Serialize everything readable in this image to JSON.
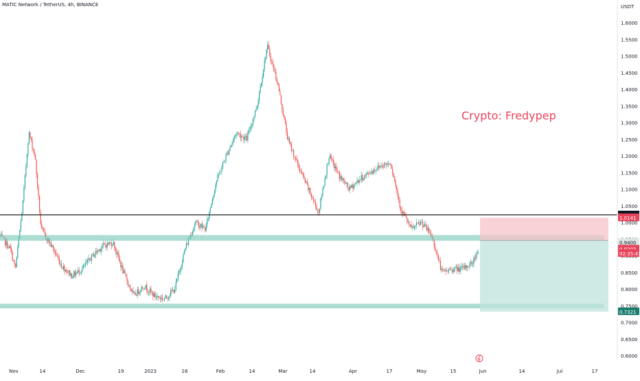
{
  "header": {
    "symbol": "MATIC Network / TetherUS, 4h, BINANCE"
  },
  "watermark": {
    "text": "Crypto: Fredypep"
  },
  "colors": {
    "up": "#26a69a",
    "down": "#ef5350",
    "zone": "#74c6b6",
    "short_risk": "#f7c3c8",
    "short_reward": "#bfe3dc",
    "resistance_line": "#000000",
    "label_dark": "#131722",
    "label_green": "#1b7d6e",
    "label_red": "#e8435a",
    "label_pale": "#dfe8e6"
  },
  "chart_data": {
    "type": "candlestick",
    "title": "MATIC Network / TetherUS, 4h, BINANCE",
    "currency": "USDT",
    "ylim": [
      0.59,
      1.62
    ],
    "y_ticks": [
      "1.6000",
      "1.5500",
      "1.5000",
      "1.4500",
      "1.4000",
      "1.3500",
      "1.3000",
      "1.2500",
      "1.2000",
      "1.1500",
      "1.1000",
      "1.0500",
      "1.0000",
      "0.9500",
      "0.9000",
      "0.8500",
      "0.8000",
      "0.7500",
      "0.7000",
      "0.6500",
      "0.6000"
    ],
    "x_ticks": [
      "Nov",
      "14",
      "Dec",
      "19",
      "2023",
      "16",
      "Feb",
      "14",
      "Mar",
      "14",
      "Apr",
      "17",
      "May",
      "15",
      "Jun",
      "14",
      "Jul",
      "17"
    ],
    "price_path": [
      {
        "t": 0.0,
        "p": 0.96
      },
      {
        "t": 1.0,
        "p": 0.92
      },
      {
        "t": 1.5,
        "p": 0.86
      },
      {
        "t": 2.2,
        "p": 1.05
      },
      {
        "t": 2.8,
        "p": 1.27
      },
      {
        "t": 3.4,
        "p": 1.2
      },
      {
        "t": 4.0,
        "p": 0.98
      },
      {
        "t": 5.0,
        "p": 0.93
      },
      {
        "t": 6.0,
        "p": 0.87
      },
      {
        "t": 7.0,
        "p": 0.84
      },
      {
        "t": 8.0,
        "p": 0.86
      },
      {
        "t": 9.0,
        "p": 0.9
      },
      {
        "t": 10.0,
        "p": 0.93
      },
      {
        "t": 11.0,
        "p": 0.94
      },
      {
        "t": 12.0,
        "p": 0.85
      },
      {
        "t": 13.0,
        "p": 0.78
      },
      {
        "t": 14.0,
        "p": 0.81
      },
      {
        "t": 15.0,
        "p": 0.78
      },
      {
        "t": 16.0,
        "p": 0.77
      },
      {
        "t": 17.0,
        "p": 0.8
      },
      {
        "t": 18.0,
        "p": 0.92
      },
      {
        "t": 19.0,
        "p": 1.0
      },
      {
        "t": 20.0,
        "p": 0.98
      },
      {
        "t": 21.0,
        "p": 1.12
      },
      {
        "t": 22.0,
        "p": 1.2
      },
      {
        "t": 23.0,
        "p": 1.27
      },
      {
        "t": 24.0,
        "p": 1.25
      },
      {
        "t": 25.0,
        "p": 1.35
      },
      {
        "t": 26.0,
        "p": 1.53
      },
      {
        "t": 27.0,
        "p": 1.42
      },
      {
        "t": 28.0,
        "p": 1.25
      },
      {
        "t": 29.0,
        "p": 1.17
      },
      {
        "t": 30.0,
        "p": 1.1
      },
      {
        "t": 31.0,
        "p": 1.03
      },
      {
        "t": 32.0,
        "p": 1.2
      },
      {
        "t": 33.0,
        "p": 1.14
      },
      {
        "t": 34.0,
        "p": 1.1
      },
      {
        "t": 35.0,
        "p": 1.13
      },
      {
        "t": 36.0,
        "p": 1.15
      },
      {
        "t": 37.0,
        "p": 1.17
      },
      {
        "t": 38.0,
        "p": 1.18
      },
      {
        "t": 39.0,
        "p": 1.04
      },
      {
        "t": 40.0,
        "p": 0.98
      },
      {
        "t": 41.0,
        "p": 1.0
      },
      {
        "t": 42.0,
        "p": 0.96
      },
      {
        "t": 43.0,
        "p": 0.85
      },
      {
        "t": 44.0,
        "p": 0.86
      },
      {
        "t": 45.0,
        "p": 0.86
      },
      {
        "t": 46.0,
        "p": 0.88
      },
      {
        "t": 46.5,
        "p": 0.92
      }
    ],
    "zones": [
      {
        "low": 0.945,
        "high": 0.962
      },
      {
        "low": 0.742,
        "high": 0.756
      }
    ],
    "resistance": 1.0228,
    "position": {
      "type": "short",
      "entry": 0.946,
      "stop": 1.0141,
      "target": 0.7321
    },
    "price_labels": [
      {
        "text": "1.0228",
        "value": 1.0228,
        "style": "dark"
      },
      {
        "text": "1.0141",
        "value": 1.0141,
        "style": "red"
      },
      {
        "text": "0.9400",
        "value": 0.94,
        "style": "pale"
      },
      {
        "text": "0.9203",
        "value": 0.9203,
        "style": "red"
      },
      {
        "text": "02:35:43",
        "value": 0.907,
        "style": "red"
      },
      {
        "text": "0.7321",
        "value": 0.7321,
        "style": "green"
      }
    ]
  }
}
